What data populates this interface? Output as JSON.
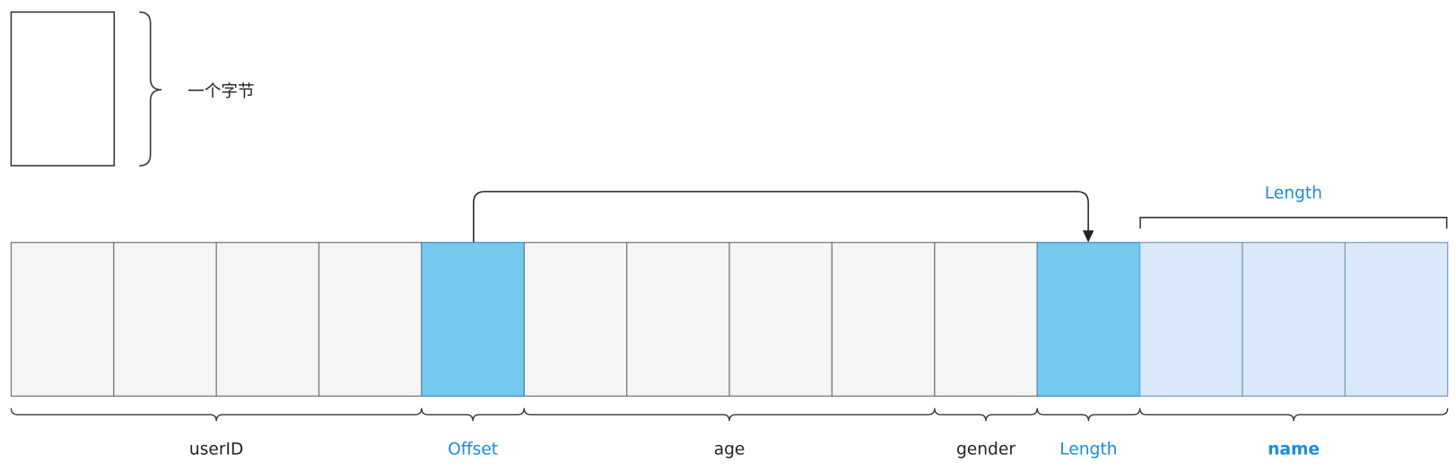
{
  "legend": {
    "label": "一个字节"
  },
  "name_span": {
    "label": "Length"
  },
  "fields": [
    {
      "label": "userID"
    },
    {
      "label": "Offset"
    },
    {
      "label": "age"
    },
    {
      "label": "gender"
    },
    {
      "label": "Length"
    },
    {
      "label": "name"
    }
  ]
}
